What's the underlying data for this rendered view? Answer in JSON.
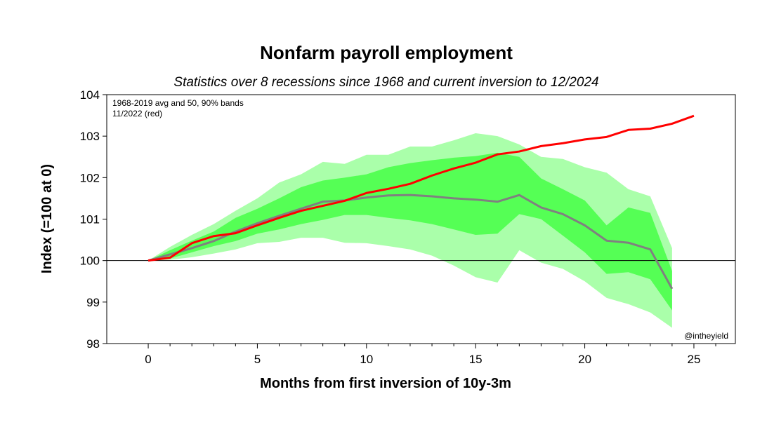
{
  "chart_data": {
    "type": "area",
    "title": "Nonfarm payroll employment",
    "subtitle": "Statistics over 8 recessions since 1968 and current inversion to 12/2024",
    "xlabel": "Months from first inversion of 10y-3m",
    "ylabel": "Index (=100 at 0)",
    "xlim": [
      -1.9,
      26.9
    ],
    "ylim": [
      98,
      104
    ],
    "xticks": [
      0,
      5,
      10,
      15,
      20,
      25
    ],
    "yticks": [
      98,
      99,
      100,
      101,
      102,
      103,
      104
    ],
    "legend_lines": [
      "1968-2019 avg and 50, 90% bands",
      "11/2022 (red)"
    ],
    "watermark": "@intheyield",
    "reference_line": 100,
    "colors": {
      "band90": "#aaffaa",
      "band50": "#55ff55",
      "avg": "#808080",
      "current": "#ff0000"
    },
    "bands_x": [
      0,
      1,
      2,
      3,
      4,
      5,
      6,
      7,
      8,
      9,
      10,
      11,
      12,
      13,
      14,
      15,
      16,
      17,
      18,
      19,
      20,
      21,
      22,
      23,
      24
    ],
    "p95": [
      100,
      100.33,
      100.62,
      100.88,
      101.2,
      101.5,
      101.88,
      102.08,
      102.38,
      102.33,
      102.55,
      102.55,
      102.75,
      102.75,
      102.9,
      103.07,
      103.0,
      102.8,
      102.5,
      102.45,
      102.25,
      102.12,
      101.72,
      101.55,
      100.3
    ],
    "p75": [
      100,
      100.25,
      100.48,
      100.7,
      101.03,
      101.25,
      101.5,
      101.77,
      101.93,
      102.0,
      102.08,
      102.25,
      102.35,
      102.42,
      102.48,
      102.52,
      102.6,
      102.5,
      101.98,
      101.72,
      101.45,
      100.85,
      101.28,
      101.15,
      99.75
    ],
    "p25": [
      100,
      100.05,
      100.2,
      100.35,
      100.47,
      100.65,
      100.75,
      100.88,
      100.98,
      101.1,
      101.1,
      101.03,
      100.97,
      100.88,
      100.75,
      100.62,
      100.65,
      101.12,
      101.0,
      100.6,
      100.2,
      99.68,
      99.72,
      99.55,
      98.8
    ],
    "p5": [
      100,
      100.02,
      100.08,
      100.17,
      100.27,
      100.42,
      100.45,
      100.55,
      100.55,
      100.43,
      100.42,
      100.35,
      100.27,
      100.12,
      99.88,
      99.6,
      99.47,
      100.25,
      99.95,
      99.8,
      99.5,
      99.1,
      98.95,
      98.75,
      98.38
    ],
    "series": [
      {
        "name": "1968-2019 avg",
        "x": [
          0,
          1,
          2,
          3,
          4,
          5,
          6,
          7,
          8,
          9,
          10,
          11,
          12,
          13,
          14,
          15,
          16,
          17,
          18,
          19,
          20,
          21,
          22,
          23,
          24
        ],
        "values": [
          100,
          100.15,
          100.3,
          100.47,
          100.7,
          100.9,
          101.08,
          101.25,
          101.42,
          101.45,
          101.52,
          101.57,
          101.58,
          101.55,
          101.5,
          101.47,
          101.42,
          101.58,
          101.28,
          101.12,
          100.85,
          100.48,
          100.43,
          100.27,
          99.32
        ]
      },
      {
        "name": "11/2022 (red)",
        "x": [
          0,
          1,
          2,
          3,
          4,
          5,
          6,
          7,
          8,
          9,
          10,
          11,
          12,
          13,
          14,
          15,
          16,
          17,
          18,
          19,
          20,
          21,
          22,
          23,
          24,
          25
        ],
        "values": [
          100,
          100.07,
          100.42,
          100.59,
          100.66,
          100.85,
          101.03,
          101.2,
          101.32,
          101.44,
          101.63,
          101.73,
          101.85,
          102.05,
          102.22,
          102.36,
          102.56,
          102.63,
          102.76,
          102.83,
          102.92,
          102.98,
          103.15,
          103.18,
          103.3,
          103.49
        ]
      }
    ]
  }
}
